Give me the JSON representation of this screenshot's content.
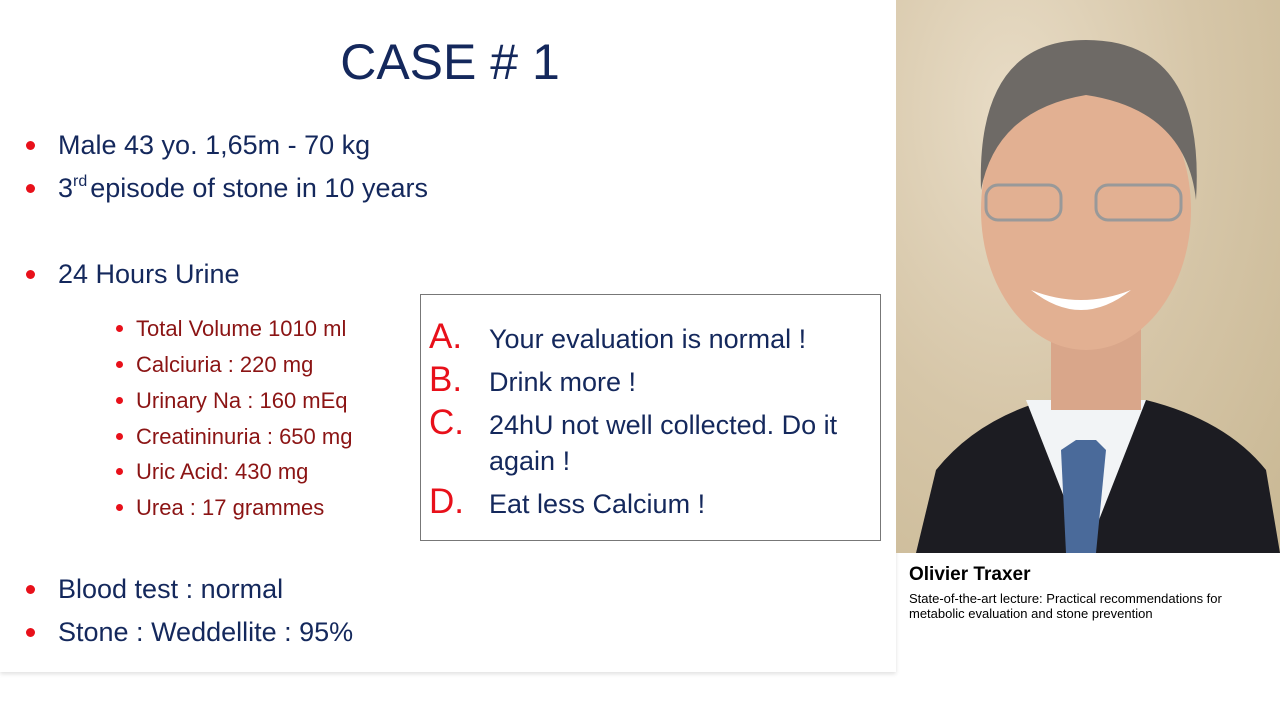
{
  "slide": {
    "title": "CASE # 1",
    "bullets": [
      {
        "text": "Male  43 yo. 1,65m - 70 kg"
      },
      {
        "sup": "rd",
        "pre": "3",
        "text": "episode of stone in 10 years"
      },
      {
        "text": "24 Hours Urine"
      },
      {
        "text": "Blood test : normal"
      },
      {
        "text": "Stone : Weddellite : 95%"
      }
    ],
    "urine_items": [
      "Total Volume 1010 ml",
      "Calciuria : 220 mg",
      "Urinary Na : 160 mEq",
      "Creatininuria : 650 mg",
      "Uric Acid: 430 mg",
      "Urea : 17 grammes"
    ],
    "options": [
      {
        "letter": "A.",
        "text": "Your evaluation is normal !"
      },
      {
        "letter": "B.",
        "text": "Drink more !"
      },
      {
        "letter": "C.",
        "text": "24hU not well collected. Do it again !"
      },
      {
        "letter": "D.",
        "text": "Eat less Calcium !"
      }
    ]
  },
  "speaker": {
    "name": "Olivier Traxer",
    "lecture": "State-of-the-art lecture: Practical recommendations for metabolic evaluation and stone prevention"
  },
  "colors": {
    "title": "#14285c",
    "bullet": "#e8101a",
    "sub_text": "#8b1414"
  }
}
